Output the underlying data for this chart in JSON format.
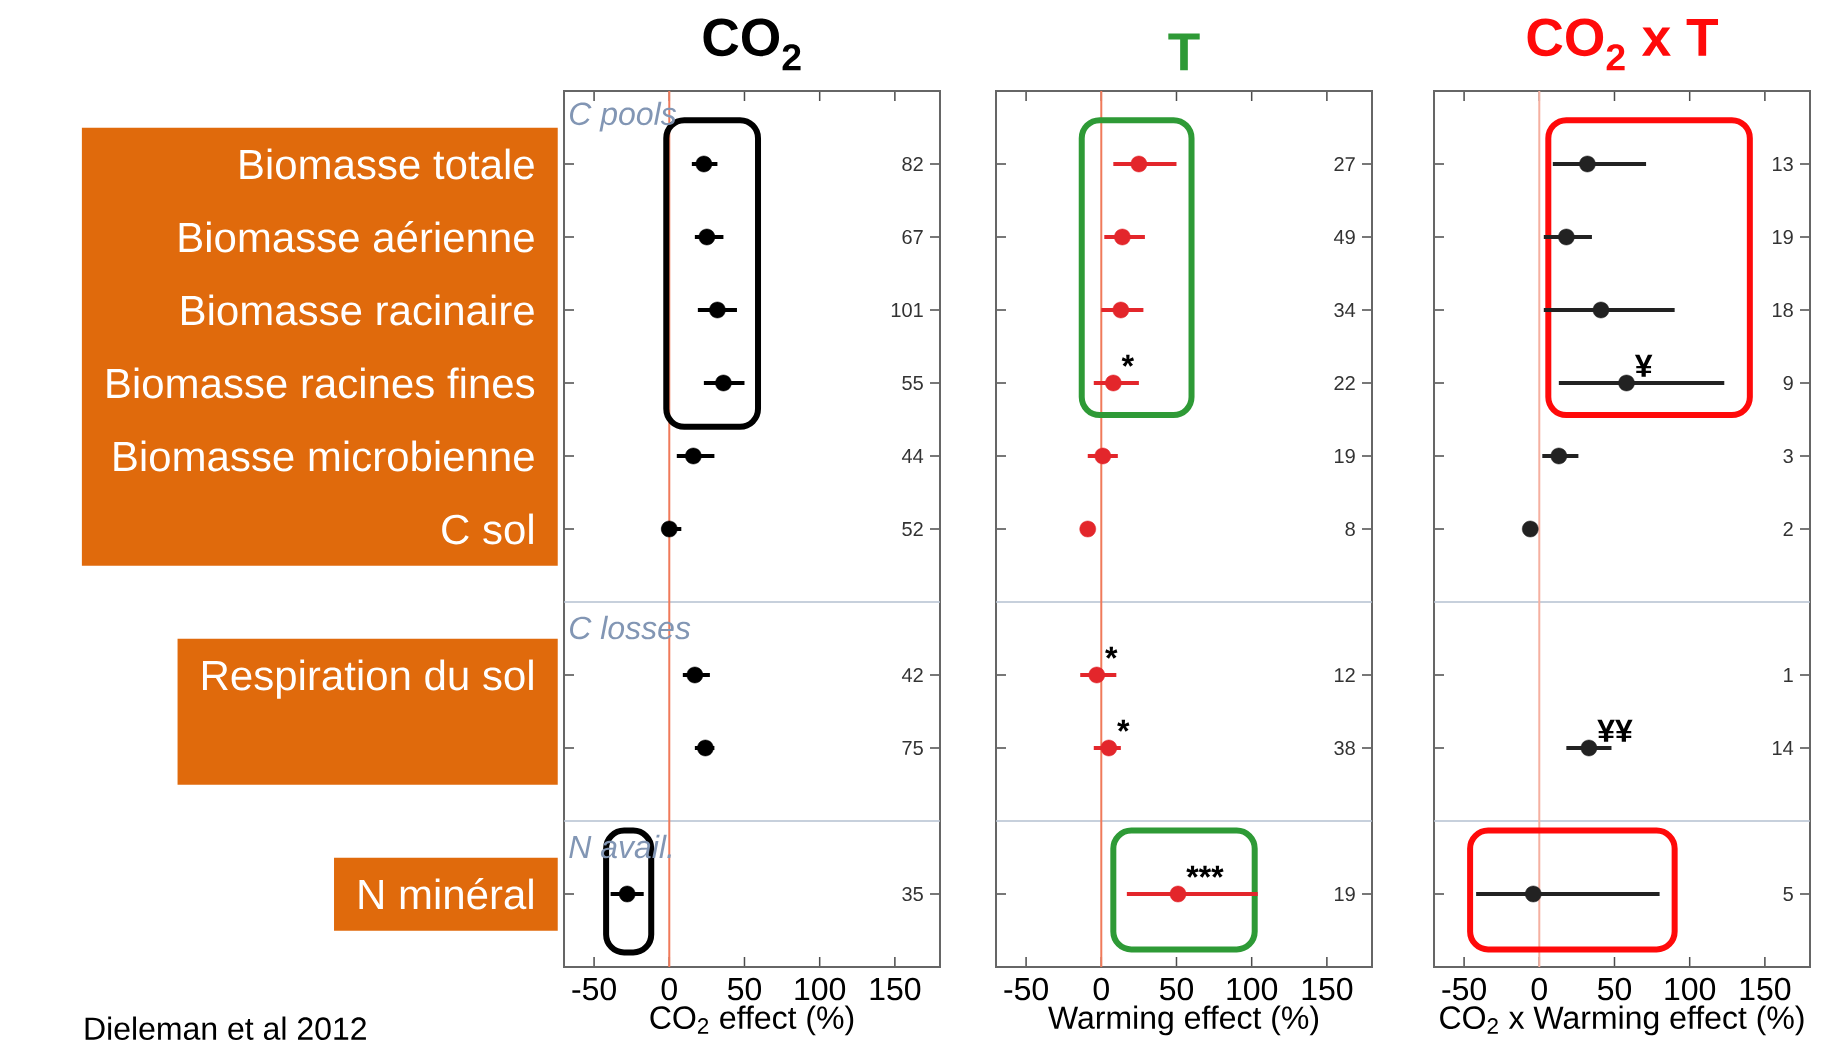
{
  "chart_data": [
    {
      "type": "scatter",
      "orientation": "horizontal",
      "title": "CO$_{2}$",
      "xlabel": "CO$_{2}$ effect (%)",
      "categories": [
        "Biomasse totale",
        "Biomasse aérienne",
        "Biomasse racinaire",
        "Biomasse racines fines",
        "Biomasse microbienne",
        "C sol",
        null,
        "Respiration du sol",
        null,
        null,
        "N minéral"
      ],
      "y2_categories": [
        "82",
        "67",
        "101",
        "55",
        "44",
        "52",
        null,
        "42",
        "75",
        null,
        "35"
      ],
      "values": [
        23,
        25,
        32,
        36,
        16,
        0,
        null,
        17,
        24,
        null,
        -28
      ],
      "errors": [
        [
          15,
          32
        ],
        [
          17,
          36
        ],
        [
          19,
          45
        ],
        [
          23,
          50
        ],
        [
          5,
          30
        ],
        [
          -5,
          8
        ],
        null,
        [
          9,
          27
        ],
        [
          17,
          30
        ],
        null,
        [
          -39,
          -17
        ]
      ],
      "color": "#000000",
      "marker": "circle",
      "xlim": [
        -70,
        180
      ],
      "xticks": [
        -50,
        0,
        50,
        100,
        150
      ],
      "ref_lines": [
        {
          "axis": "x",
          "value": 0,
          "color": "#f07a5a"
        }
      ],
      "annotations": [
        "C pools",
        "C losses",
        "N avail.",
        "Dieleman et al 2012"
      ]
    },
    {
      "type": "scatter",
      "orientation": "horizontal",
      "title": "T",
      "xlabel": "Warming effect (%)",
      "tick_labels": "x",
      "categories": [
        null,
        null,
        null,
        null,
        null,
        null,
        null,
        null,
        null,
        null,
        null
      ],
      "y2_categories": [
        "27",
        "49",
        "34",
        "22",
        "19",
        "8",
        null,
        "12",
        "38",
        null,
        "19"
      ],
      "values": [
        25,
        14,
        13,
        8,
        1,
        -9,
        null,
        -3,
        5,
        null,
        51
      ],
      "errors": [
        [
          8,
          50
        ],
        [
          2,
          29
        ],
        [
          0,
          28
        ],
        [
          -5,
          25
        ],
        [
          -9,
          11
        ],
        [
          -13,
          -5
        ],
        null,
        [
          -14,
          10
        ],
        [
          -5,
          13
        ],
        null,
        [
          17,
          104
        ]
      ],
      "value_labels": [
        null,
        null,
        null,
        "*",
        null,
        null,
        null,
        "*",
        "*",
        null,
        "***"
      ],
      "color": "#e3262b",
      "marker": "circle",
      "xlim": [
        -70,
        180
      ],
      "xticks": [
        -50,
        0,
        50,
        100,
        150
      ],
      "ref_lines": [
        {
          "axis": "x",
          "value": 0,
          "color": "#f07a5a"
        }
      ]
    },
    {
      "type": "scatter",
      "orientation": "horizontal",
      "title": "CO$_{2}$ x T",
      "xlabel": "CO$_{2}$ x Warming effect (%)",
      "tick_labels": "x",
      "categories": [
        null,
        null,
        null,
        null,
        null,
        null,
        null,
        null,
        null,
        null,
        null
      ],
      "y2_categories": [
        "13",
        "19",
        "18",
        "9",
        "3",
        "2",
        null,
        "1",
        "14",
        null,
        "5"
      ],
      "values": [
        32,
        18,
        41,
        58,
        13,
        -6,
        null,
        null,
        33,
        null,
        -4
      ],
      "errors": [
        [
          9,
          71
        ],
        [
          3,
          35
        ],
        [
          3,
          90
        ],
        [
          13,
          123
        ],
        [
          2,
          26
        ],
        null,
        null,
        null,
        [
          18,
          48
        ],
        null,
        [
          -42,
          80
        ]
      ],
      "value_labels": [
        null,
        null,
        null,
        "¥",
        null,
        null,
        null,
        null,
        "¥¥",
        null,
        null
      ],
      "color": "#222222",
      "marker": "circle",
      "xlim": [
        -70,
        180
      ],
      "xticks": [
        -50,
        0,
        50,
        100,
        150
      ],
      "ref_lines": [
        {
          "axis": "x",
          "value": 0,
          "color": "#f5b0a0"
        }
      ]
    }
  ]
}
